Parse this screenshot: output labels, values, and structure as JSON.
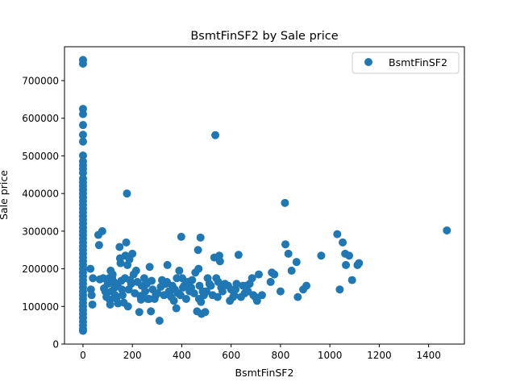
{
  "chart_data": {
    "type": "scatter",
    "title": "BsmtFinSF2 by Sale price",
    "xlabel": "BsmtFinSF2",
    "ylabel": "Sale price",
    "xlim": [
      -75,
      1545
    ],
    "ylim": [
      0,
      790000
    ],
    "xticks": [
      0,
      200,
      400,
      600,
      800,
      1000,
      1200,
      1400
    ],
    "yticks": [
      0,
      100000,
      200000,
      300000,
      400000,
      500000,
      600000,
      700000
    ],
    "grid": false,
    "legend_position": "top-right",
    "series": [
      {
        "name": "BsmtFinSF2",
        "color": "#1f77b4",
        "points": [
          [
            0,
            755000
          ],
          [
            0,
            745000
          ],
          [
            0,
            625000
          ],
          [
            0,
            611000
          ],
          [
            0,
            582000
          ],
          [
            0,
            556000
          ],
          [
            0,
            538000
          ],
          [
            0,
            501000
          ],
          [
            0,
            485000
          ],
          [
            0,
            475000
          ],
          [
            0,
            465000
          ],
          [
            0,
            455000
          ],
          [
            0,
            440000
          ],
          [
            0,
            430000
          ],
          [
            0,
            420000
          ],
          [
            0,
            410000
          ],
          [
            0,
            400000
          ],
          [
            0,
            390000
          ],
          [
            0,
            380000
          ],
          [
            0,
            370000
          ],
          [
            0,
            360000
          ],
          [
            0,
            350000
          ],
          [
            0,
            340000
          ],
          [
            0,
            330000
          ],
          [
            0,
            320000
          ],
          [
            0,
            310000
          ],
          [
            0,
            300000
          ],
          [
            0,
            290000
          ],
          [
            0,
            280000
          ],
          [
            0,
            270000
          ],
          [
            0,
            260000
          ],
          [
            0,
            250000
          ],
          [
            0,
            240000
          ],
          [
            0,
            230000
          ],
          [
            0,
            220000
          ],
          [
            0,
            210000
          ],
          [
            0,
            200000
          ],
          [
            0,
            190000
          ],
          [
            0,
            180000
          ],
          [
            0,
            170000
          ],
          [
            0,
            160000
          ],
          [
            0,
            150000
          ],
          [
            0,
            140000
          ],
          [
            0,
            130000
          ],
          [
            0,
            120000
          ],
          [
            0,
            110000
          ],
          [
            0,
            100000
          ],
          [
            0,
            90000
          ],
          [
            0,
            80000
          ],
          [
            0,
            70000
          ],
          [
            0,
            60000
          ],
          [
            0,
            50000
          ],
          [
            0,
            40000
          ],
          [
            0,
            35000
          ],
          [
            30,
            200000
          ],
          [
            32,
            145000
          ],
          [
            35,
            130000
          ],
          [
            38,
            105000
          ],
          [
            40,
            175000
          ],
          [
            62,
            290000
          ],
          [
            65,
            263000
          ],
          [
            68,
            172000
          ],
          [
            78,
            300000
          ],
          [
            82,
            175000
          ],
          [
            85,
            148000
          ],
          [
            90,
            140000
          ],
          [
            95,
            125000
          ],
          [
            100,
            160000
          ],
          [
            105,
            175000
          ],
          [
            108,
            118000
          ],
          [
            110,
            105000
          ],
          [
            112,
            195000
          ],
          [
            115,
            140000
          ],
          [
            118,
            175000
          ],
          [
            120,
            185000
          ],
          [
            125,
            165000
          ],
          [
            128,
            150000
          ],
          [
            130,
            130000
          ],
          [
            135,
            120000
          ],
          [
            140,
            155000
          ],
          [
            142,
            108000
          ],
          [
            148,
            258000
          ],
          [
            150,
            228000
          ],
          [
            152,
            215000
          ],
          [
            155,
            168000
          ],
          [
            158,
            145000
          ],
          [
            160,
            130000
          ],
          [
            165,
            110000
          ],
          [
            170,
            175000
          ],
          [
            172,
            235000
          ],
          [
            175,
            270000
          ],
          [
            178,
            400000
          ],
          [
            180,
            210000
          ],
          [
            182,
            100000
          ],
          [
            185,
            145000
          ],
          [
            188,
            225000
          ],
          [
            190,
            170000
          ],
          [
            195,
            160000
          ],
          [
            200,
            240000
          ],
          [
            205,
            185000
          ],
          [
            210,
            135000
          ],
          [
            215,
            195000
          ],
          [
            220,
            165000
          ],
          [
            228,
            85000
          ],
          [
            232,
            128000
          ],
          [
            235,
            118000
          ],
          [
            238,
            155000
          ],
          [
            242,
            125000
          ],
          [
            248,
            175000
          ],
          [
            252,
            140000
          ],
          [
            258,
            160000
          ],
          [
            262,
            120000
          ],
          [
            268,
            120000
          ],
          [
            270,
            205000
          ],
          [
            275,
            87000
          ],
          [
            278,
            168000
          ],
          [
            282,
            145000
          ],
          [
            290,
            120000
          ],
          [
            295,
            130000
          ],
          [
            302,
            135000
          ],
          [
            310,
            62000
          ],
          [
            315,
            152000
          ],
          [
            320,
            170000
          ],
          [
            328,
            130000
          ],
          [
            335,
            160000
          ],
          [
            340,
            165000
          ],
          [
            342,
            210000
          ],
          [
            348,
            140000
          ],
          [
            352,
            130000
          ],
          [
            358,
            125000
          ],
          [
            362,
            155000
          ],
          [
            368,
            115000
          ],
          [
            372,
            145000
          ],
          [
            378,
            95000
          ],
          [
            380,
            175000
          ],
          [
            385,
            135000
          ],
          [
            390,
            195000
          ],
          [
            395,
            130000
          ],
          [
            398,
            285000
          ],
          [
            402,
            175000
          ],
          [
            405,
            150000
          ],
          [
            410,
            155000
          ],
          [
            418,
            120000
          ],
          [
            425,
            165000
          ],
          [
            432,
            140000
          ],
          [
            438,
            150000
          ],
          [
            442,
            170000
          ],
          [
            450,
            135000
          ],
          [
            455,
            190000
          ],
          [
            462,
            87000
          ],
          [
            466,
            250000
          ],
          [
            468,
            200000
          ],
          [
            470,
            120000
          ],
          [
            472,
            155000
          ],
          [
            476,
            283000
          ],
          [
            478,
            112000
          ],
          [
            480,
            80000
          ],
          [
            485,
            140000
          ],
          [
            490,
            130000
          ],
          [
            495,
            85000
          ],
          [
            500,
            140000
          ],
          [
            505,
            175000
          ],
          [
            512,
            160000
          ],
          [
            518,
            155000
          ],
          [
            525,
            130000
          ],
          [
            532,
            230000
          ],
          [
            536,
            555000
          ],
          [
            540,
            175000
          ],
          [
            545,
            125000
          ],
          [
            548,
            165000
          ],
          [
            552,
            235000
          ],
          [
            555,
            220000
          ],
          [
            560,
            150000
          ],
          [
            565,
            140000
          ],
          [
            575,
            160000
          ],
          [
            588,
            155000
          ],
          [
            595,
            115000
          ],
          [
            600,
            145000
          ],
          [
            608,
            125000
          ],
          [
            612,
            130000
          ],
          [
            618,
            145000
          ],
          [
            622,
            160000
          ],
          [
            630,
            237000
          ],
          [
            640,
            125000
          ],
          [
            648,
            155000
          ],
          [
            655,
            135000
          ],
          [
            662,
            155000
          ],
          [
            668,
            140000
          ],
          [
            675,
            160000
          ],
          [
            685,
            175000
          ],
          [
            690,
            130000
          ],
          [
            698,
            125000
          ],
          [
            705,
            115000
          ],
          [
            712,
            185000
          ],
          [
            725,
            130000
          ],
          [
            760,
            165000
          ],
          [
            765,
            190000
          ],
          [
            775,
            185000
          ],
          [
            800,
            140000
          ],
          [
            818,
            375000
          ],
          [
            820,
            265000
          ],
          [
            832,
            240000
          ],
          [
            845,
            195000
          ],
          [
            865,
            218000
          ],
          [
            870,
            125000
          ],
          [
            892,
            145000
          ],
          [
            905,
            155000
          ],
          [
            965,
            235000
          ],
          [
            1030,
            292000
          ],
          [
            1040,
            145000
          ],
          [
            1052,
            270000
          ],
          [
            1062,
            240000
          ],
          [
            1065,
            210000
          ],
          [
            1078,
            235000
          ],
          [
            1090,
            170000
          ],
          [
            1112,
            210000
          ],
          [
            1118,
            215000
          ],
          [
            1474,
            302000
          ]
        ]
      }
    ]
  }
}
